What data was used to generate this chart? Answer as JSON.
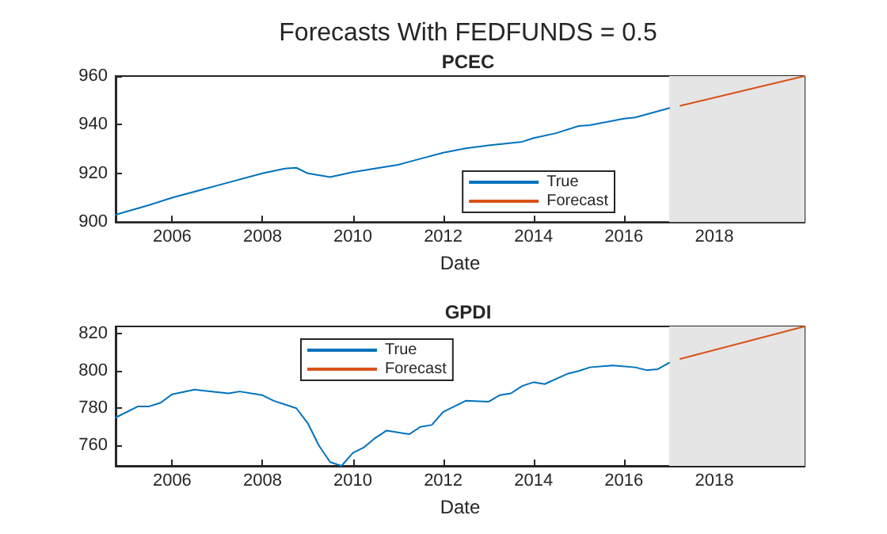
{
  "chart_data": [
    {
      "type": "line",
      "title": "PCEC",
      "xlabel": "Date",
      "annotations": [
        "Forecasts With FEDFUNDS = 0.5"
      ],
      "xlim": [
        "2004-10",
        "2020-01"
      ],
      "xticks": [
        "2006",
        "2008",
        "2010",
        "2012",
        "2014",
        "2016",
        "2018"
      ],
      "ylim": [
        900,
        960
      ],
      "yticks": [
        900,
        920,
        940,
        960
      ],
      "grid": false,
      "legend": "bottom right",
      "bands": [
        {
          "axis": "x",
          "from": "2017-01",
          "to": "2020-01",
          "color": "#e5e5e5"
        }
      ],
      "series": [
        {
          "name": "True",
          "color": "#0072bd",
          "x": [
            "2004-10",
            "2005-07",
            "2006-01",
            "2007-01",
            "2008-01",
            "2008-07",
            "2008-10",
            "2009-01",
            "2009-07",
            "2010-01",
            "2011-01",
            "2011-07",
            "2012-01",
            "2012-07",
            "2013-01",
            "2013-10",
            "2014-01",
            "2014-07",
            "2015-01",
            "2015-04",
            "2016-01",
            "2016-04",
            "2017-01"
          ],
          "values": [
            903,
            907,
            910,
            915,
            920,
            922,
            922.3,
            920,
            918.5,
            920.5,
            923.5,
            926,
            928.5,
            930.3,
            931.5,
            933,
            934.5,
            936.5,
            939.5,
            939.8,
            942.5,
            943,
            946.8
          ]
        },
        {
          "name": "Forecast",
          "color": "#d95319",
          "x": [
            "2017-04",
            "2020-01"
          ],
          "values": [
            947.8,
            960
          ]
        }
      ]
    },
    {
      "type": "line",
      "title": "GPDI",
      "xlabel": "Date",
      "xlim": [
        "2004-10",
        "2020-01"
      ],
      "xticks": [
        "2006",
        "2008",
        "2010",
        "2012",
        "2014",
        "2016",
        "2018"
      ],
      "ylim": [
        749,
        824
      ],
      "yticks": [
        760,
        780,
        800,
        820
      ],
      "grid": false,
      "legend": "top left",
      "bands": [
        {
          "axis": "x",
          "from": "2017-01",
          "to": "2020-01",
          "color": "#e5e5e5"
        }
      ],
      "series": [
        {
          "name": "True",
          "color": "#0072bd",
          "x": [
            "2004-10",
            "2005-04",
            "2005-07",
            "2005-10",
            "2006-01",
            "2006-07",
            "2007-04",
            "2007-07",
            "2008-01",
            "2008-04",
            "2008-10",
            "2009-01",
            "2009-04",
            "2009-07",
            "2009-10",
            "2010-01",
            "2010-04",
            "2010-07",
            "2010-10",
            "2011-04",
            "2011-07",
            "2011-10",
            "2012-01",
            "2012-07",
            "2013-01",
            "2013-04",
            "2013-07",
            "2013-10",
            "2014-01",
            "2014-04",
            "2014-10",
            "2015-01",
            "2015-04",
            "2015-10",
            "2016-04",
            "2016-07",
            "2016-10",
            "2017-01"
          ],
          "values": [
            775,
            781,
            781,
            783,
            787.5,
            790,
            788,
            789,
            787,
            784,
            780,
            772,
            760,
            751,
            749,
            756,
            759,
            764,
            768,
            766,
            770,
            771,
            778,
            784,
            783.5,
            787,
            788,
            792,
            794,
            793,
            798.5,
            800,
            802,
            803,
            802,
            800.5,
            801,
            804.5
          ]
        },
        {
          "name": "Forecast",
          "color": "#d95319",
          "x": [
            "2017-04",
            "2020-01"
          ],
          "values": [
            806.5,
            824
          ]
        }
      ]
    }
  ]
}
